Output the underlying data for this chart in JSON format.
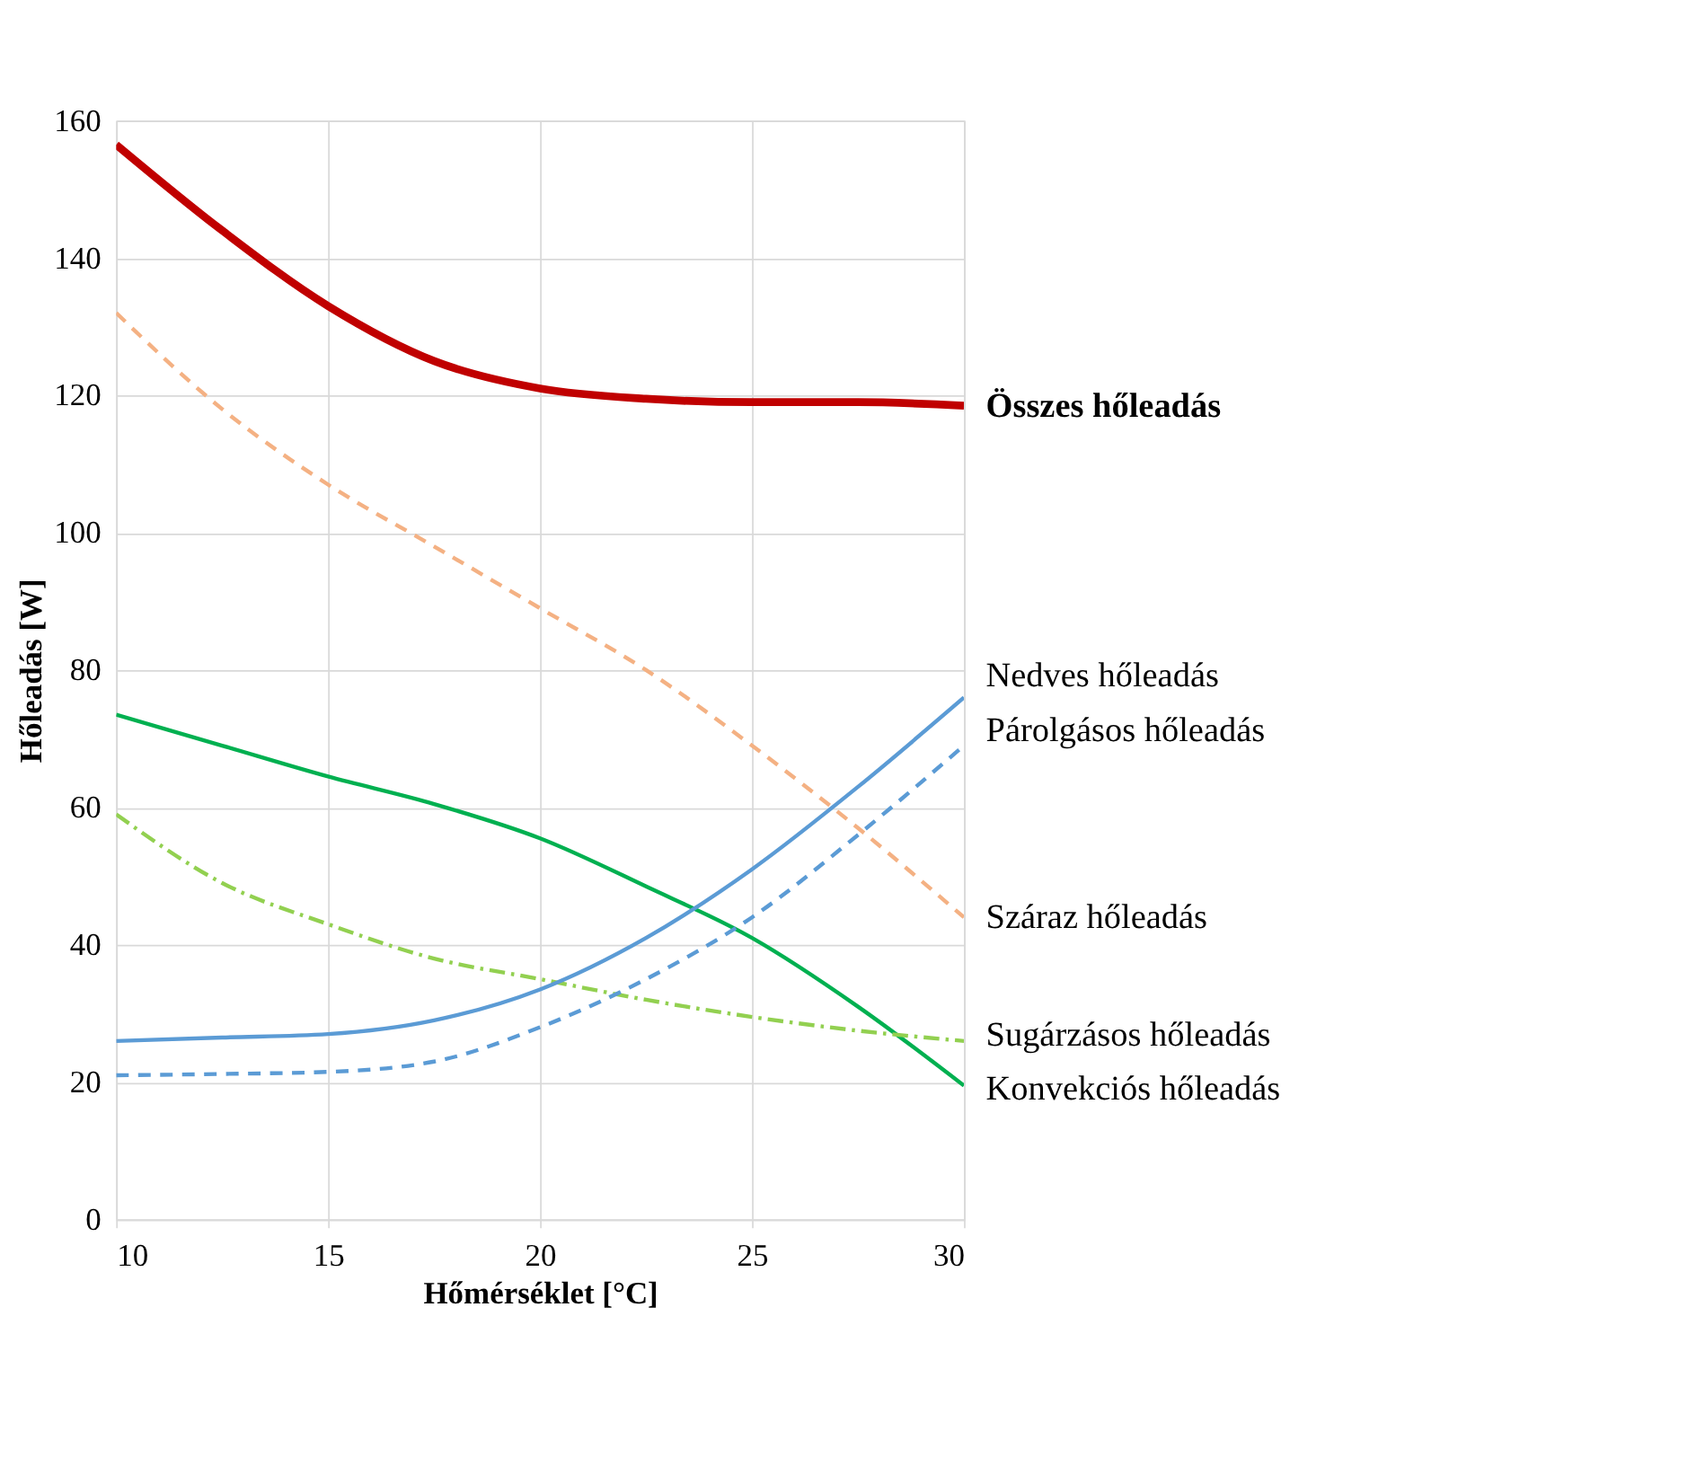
{
  "chart_data": {
    "type": "line",
    "xlabel": "Hőmérséklet [°C]",
    "ylabel": "Hőleadás [W]",
    "x": [
      10,
      12.5,
      15,
      17.5,
      20,
      22.5,
      25,
      27.5,
      30
    ],
    "xlim": [
      10,
      30
    ],
    "xticks": [
      10,
      15,
      20,
      25,
      30
    ],
    "ylim": [
      0,
      160
    ],
    "yticks": [
      0,
      20,
      40,
      60,
      80,
      100,
      120,
      140,
      160
    ],
    "grid": true,
    "legend": false,
    "marker": "none",
    "series": [
      {
        "name": "Összes hőleadás",
        "color": "#c00000",
        "line_style": "solid",
        "values": [
          156.5,
          144,
          133,
          125,
          121,
          119.5,
          119,
          119,
          118.5
        ]
      },
      {
        "name": "Száraz hőleadás",
        "color": "#f4b183",
        "line_style": "dashed",
        "values": [
          132,
          118,
          107,
          98,
          89,
          80,
          69,
          57,
          44
        ]
      },
      {
        "name": "Konvekciós hőleadás",
        "color": "#00b050",
        "line_style": "solid",
        "values": [
          73.5,
          69,
          64.5,
          60.5,
          55.5,
          48.5,
          41,
          31,
          19.5
        ]
      },
      {
        "name": "Sugárzásos hőleadás",
        "color": "#92d050",
        "line_style": "dashdot",
        "values": [
          59,
          49,
          43,
          38,
          35,
          32,
          29.5,
          27.5,
          26
        ]
      },
      {
        "name": "Nedves hőleadás",
        "color": "#5b9bd5",
        "line_style": "solid",
        "values": [
          26,
          26.5,
          27,
          29,
          33.5,
          41,
          51,
          63,
          76
        ]
      },
      {
        "name": "Párolgásos hőleadás",
        "color": "#5b9bd5",
        "line_style": "dashed",
        "values": [
          21,
          21.2,
          21.5,
          23,
          28,
          35,
          44,
          56,
          69
        ]
      }
    ]
  }
}
